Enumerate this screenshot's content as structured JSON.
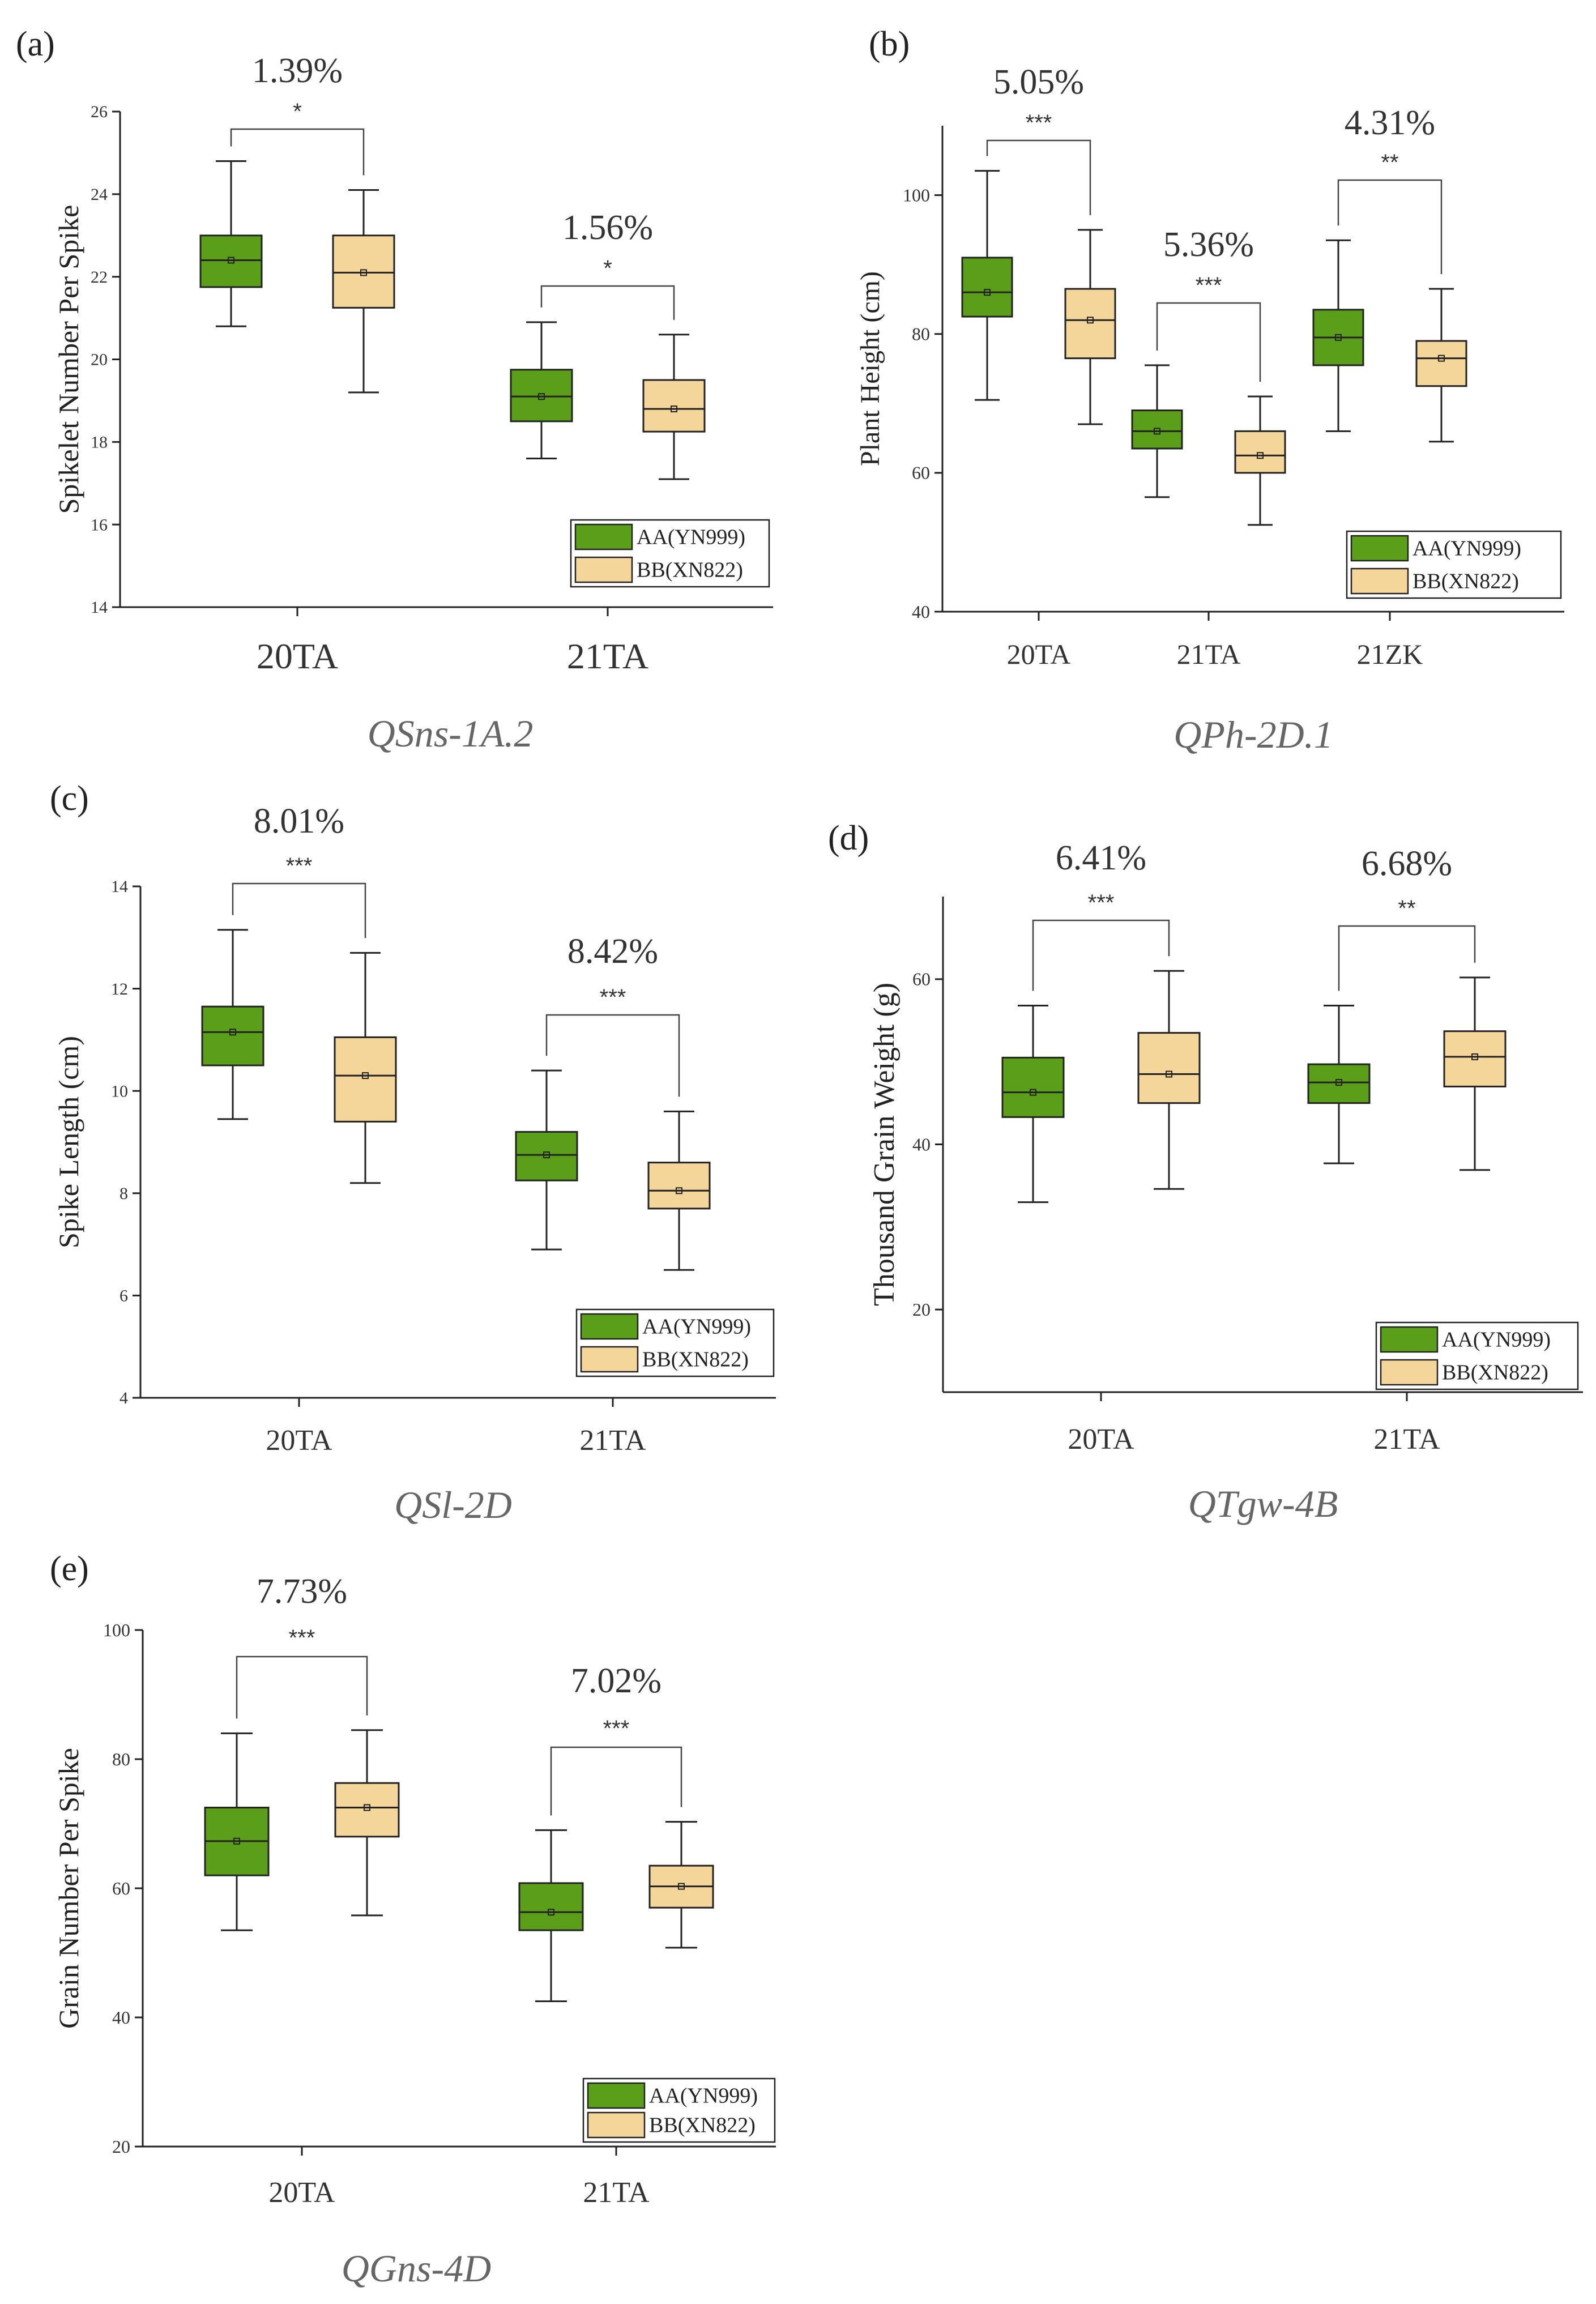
{
  "colors": {
    "AA": "#5a9e1a",
    "BB": "#f5d69a",
    "stroke": "#222222"
  },
  "legend": {
    "AA": "AA(YN999)",
    "BB": "BB(XN822)"
  },
  "chart_data": [
    {
      "panel": "(a)",
      "type": "box",
      "qtl": "QSns-1A.2",
      "ylabel": "Spikelet Number Per Spike",
      "ylim": [
        14,
        26
      ],
      "yticks": [
        "14",
        "16",
        "18",
        "20",
        "22",
        "24",
        "26"
      ],
      "categories": [
        "20TA",
        "21TA"
      ],
      "legend_position": "bottom-right",
      "series": [
        {
          "name": "AA(YN999)",
          "boxes": [
            {
              "min": 20.8,
              "q1": 21.75,
              "median": 22.4,
              "q3": 23.0,
              "max": 24.8,
              "mean": 22.4
            },
            {
              "min": 17.6,
              "q1": 18.5,
              "median": 19.1,
              "q3": 19.75,
              "max": 20.9,
              "mean": 19.1
            }
          ]
        },
        {
          "name": "BB(XN822)",
          "boxes": [
            {
              "min": 19.2,
              "q1": 21.25,
              "median": 22.1,
              "q3": 23.0,
              "max": 24.1,
              "mean": 22.1
            },
            {
              "min": 17.1,
              "q1": 18.25,
              "median": 18.8,
              "q3": 19.5,
              "max": 20.6,
              "mean": 18.8
            }
          ]
        }
      ],
      "comparisons": [
        {
          "category": "20TA",
          "percent": "1.39%",
          "significance": "*"
        },
        {
          "category": "21TA",
          "percent": "1.56%",
          "significance": "*"
        }
      ]
    },
    {
      "panel": "(b)",
      "type": "box",
      "qtl": "QPh-2D.1",
      "ylabel": "Plant Height (cm)",
      "ylim": [
        40,
        110
      ],
      "yticks": [
        "40",
        "60",
        "80",
        "100"
      ],
      "categories": [
        "20TA",
        "21TA",
        "21ZK"
      ],
      "legend_position": "bottom-right",
      "series": [
        {
          "name": "AA(YN999)",
          "boxes": [
            {
              "min": 70.5,
              "q1": 82.5,
              "median": 86.0,
              "q3": 91.0,
              "max": 103.5,
              "mean": 86.0
            },
            {
              "min": 56.5,
              "q1": 63.5,
              "median": 66.0,
              "q3": 69.0,
              "max": 75.5,
              "mean": 66.0
            },
            {
              "min": 66.0,
              "q1": 75.5,
              "median": 79.5,
              "q3": 83.5,
              "max": 93.5,
              "mean": 79.5
            }
          ]
        },
        {
          "name": "BB(XN822)",
          "boxes": [
            {
              "min": 67.0,
              "q1": 76.5,
              "median": 82.0,
              "q3": 86.5,
              "max": 95.0,
              "mean": 82.0
            },
            {
              "min": 52.5,
              "q1": 60.0,
              "median": 62.5,
              "q3": 66.0,
              "max": 71.0,
              "mean": 62.5
            },
            {
              "min": 64.5,
              "q1": 72.5,
              "median": 76.5,
              "q3": 79.0,
              "max": 86.5,
              "mean": 76.5
            }
          ]
        }
      ],
      "comparisons": [
        {
          "category": "20TA",
          "percent": "5.05%",
          "significance": "***"
        },
        {
          "category": "21TA",
          "percent": "5.36%",
          "significance": "***"
        },
        {
          "category": "21ZK",
          "percent": "4.31%",
          "significance": "**"
        }
      ]
    },
    {
      "panel": "(c)",
      "type": "box",
      "qtl": "QSl-2D",
      "ylabel": "Spike Length (cm)",
      "ylim": [
        4,
        14
      ],
      "yticks": [
        "4",
        "6",
        "8",
        "10",
        "12",
        "14"
      ],
      "categories": [
        "20TA",
        "21TA"
      ],
      "legend_position": "bottom-right",
      "series": [
        {
          "name": "AA(YN999)",
          "boxes": [
            {
              "min": 9.45,
              "q1": 10.5,
              "median": 11.15,
              "q3": 11.65,
              "max": 13.15,
              "mean": 11.15
            },
            {
              "min": 6.9,
              "q1": 8.25,
              "median": 8.75,
              "q3": 9.2,
              "max": 10.4,
              "mean": 8.75
            }
          ]
        },
        {
          "name": "BB(XN822)",
          "boxes": [
            {
              "min": 8.2,
              "q1": 9.4,
              "median": 10.3,
              "q3": 11.05,
              "max": 12.7,
              "mean": 10.3
            },
            {
              "min": 6.5,
              "q1": 7.7,
              "median": 8.05,
              "q3": 8.6,
              "max": 9.6,
              "mean": 8.05
            }
          ]
        }
      ],
      "comparisons": [
        {
          "category": "20TA",
          "percent": "8.01%",
          "significance": "***"
        },
        {
          "category": "21TA",
          "percent": "8.42%",
          "significance": "***"
        }
      ]
    },
    {
      "panel": "(d)",
      "type": "box",
      "qtl": "QTgw-4B",
      "ylabel": "Thousand Grain Weight (g)",
      "ylim": [
        10,
        70
      ],
      "yticks": [
        "20",
        "40",
        "60"
      ],
      "categories": [
        "20TA",
        "21TA"
      ],
      "legend_position": "bottom-right",
      "series": [
        {
          "name": "AA(YN999)",
          "boxes": [
            {
              "min": 33.0,
              "q1": 43.3,
              "median": 46.3,
              "q3": 50.5,
              "max": 56.8,
              "mean": 46.3
            },
            {
              "min": 37.7,
              "q1": 45.0,
              "median": 47.5,
              "q3": 49.7,
              "max": 56.8,
              "mean": 47.5
            }
          ]
        },
        {
          "name": "BB(XN822)",
          "boxes": [
            {
              "min": 34.6,
              "q1": 45.0,
              "median": 48.5,
              "q3": 53.5,
              "max": 61.0,
              "mean": 48.5
            },
            {
              "min": 36.9,
              "q1": 47.0,
              "median": 50.6,
              "q3": 53.7,
              "max": 60.2,
              "mean": 50.6
            }
          ]
        }
      ],
      "comparisons": [
        {
          "category": "20TA",
          "percent": "6.41%",
          "significance": "***"
        },
        {
          "category": "21TA",
          "percent": "6.68%",
          "significance": "**"
        }
      ]
    },
    {
      "panel": "(e)",
      "type": "box",
      "qtl": "QGns-4D",
      "ylabel": "Grain Number Per Spike",
      "ylim": [
        20,
        100
      ],
      "yticks": [
        "20",
        "40",
        "60",
        "80",
        "100"
      ],
      "categories": [
        "20TA",
        "21TA"
      ],
      "legend_position": "bottom-right",
      "series": [
        {
          "name": "AA(YN999)",
          "boxes": [
            {
              "min": 53.5,
              "q1": 62.0,
              "median": 67.3,
              "q3": 72.5,
              "max": 84.0,
              "mean": 67.3
            },
            {
              "min": 42.5,
              "q1": 53.5,
              "median": 56.3,
              "q3": 60.8,
              "max": 69.0,
              "mean": 56.3
            }
          ]
        },
        {
          "name": "BB(XN822)",
          "boxes": [
            {
              "min": 55.8,
              "q1": 68.0,
              "median": 72.5,
              "q3": 76.3,
              "max": 84.5,
              "mean": 72.5
            },
            {
              "min": 50.8,
              "q1": 57.0,
              "median": 60.3,
              "q3": 63.5,
              "max": 70.3,
              "mean": 60.3
            }
          ]
        }
      ],
      "comparisons": [
        {
          "category": "20TA",
          "percent": "7.73%",
          "significance": "***"
        },
        {
          "category": "21TA",
          "percent": "7.02%",
          "significance": "***"
        }
      ]
    }
  ]
}
